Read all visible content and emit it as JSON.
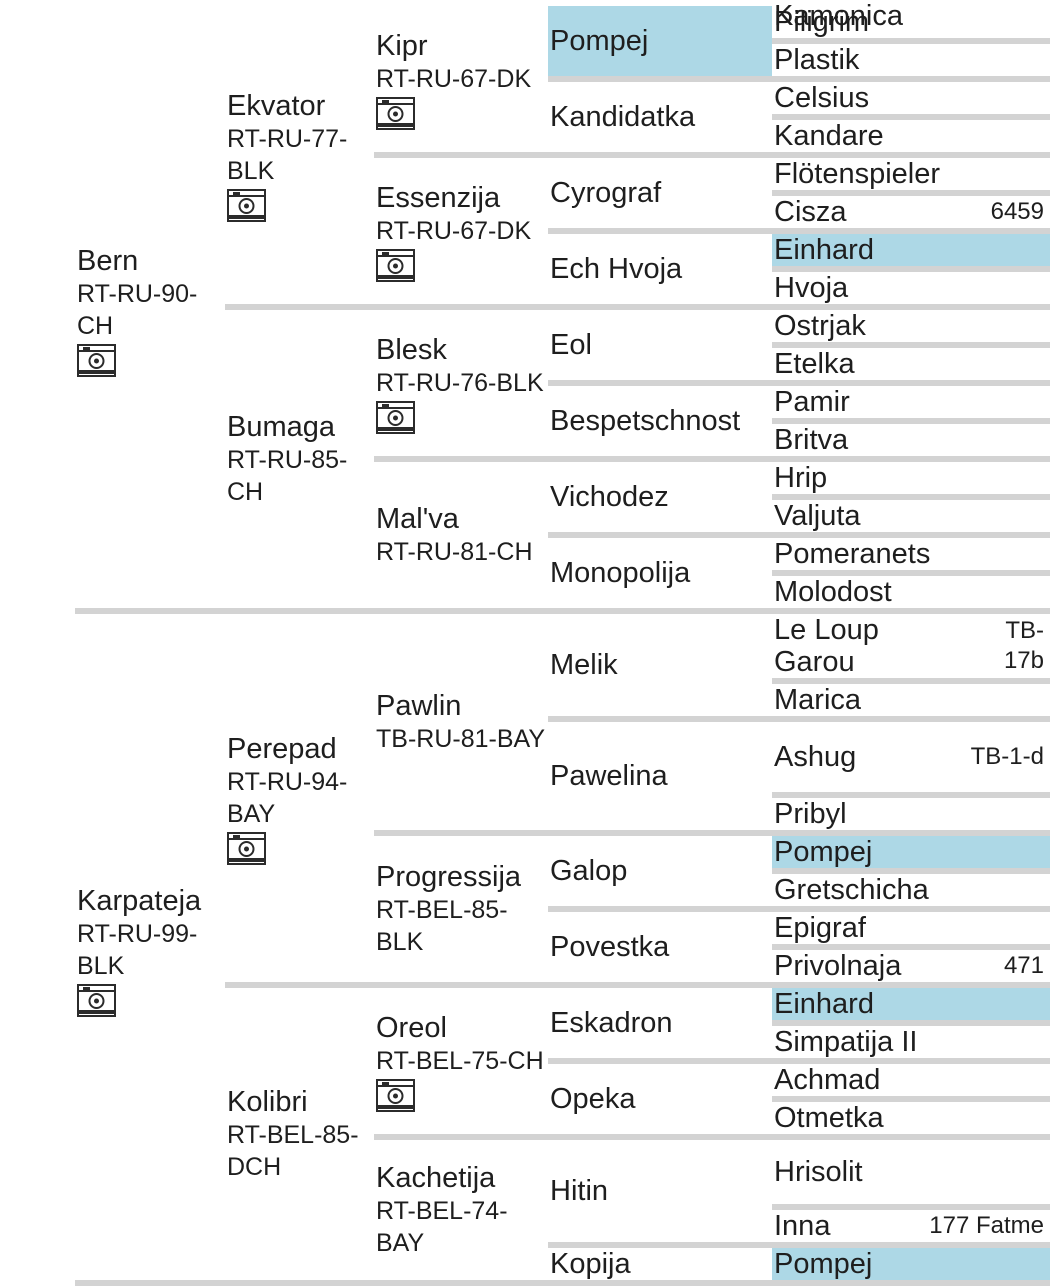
{
  "colors": {
    "highlight": "#add8e6",
    "separator": "#d3d3d3",
    "text": "#1e1e1e"
  },
  "icons": {
    "photo": "camera-icon"
  },
  "pedigree": {
    "name": "Bern",
    "reg": "RT-RU-90-CH",
    "photo": true,
    "sire": {
      "name": "Ekvator",
      "reg": "RT-RU-77-BLK",
      "photo": true,
      "sire": {
        "name": "Kipr",
        "reg": "RT-RU-67-DK",
        "photo": true,
        "sire": {
          "name": "Pompej",
          "highlight": true,
          "sire": {
            "name": "Piligrim"
          },
          "dam": {
            "name": "Plastik"
          }
        },
        "dam": {
          "name": "Kandidatka",
          "sire": {
            "name": "Celsius"
          },
          "dam": {
            "name": "Kandare"
          }
        }
      },
      "dam": {
        "name": "Essenzija",
        "reg": "RT-RU-67-DK",
        "photo": true,
        "sire": {
          "name": "Cyrograf",
          "sire": {
            "name": "Flötenspieler"
          },
          "dam": {
            "name": "Cisza",
            "extra": "6459"
          }
        },
        "dam": {
          "name": "Ech Hvoja",
          "sire": {
            "name": "Einhard",
            "highlight": true
          },
          "dam": {
            "name": "Hvoja"
          }
        }
      }
    },
    "dam": {
      "name": "Bumaga",
      "reg": "RT-RU-85-CH",
      "sire": {
        "name": "Blesk",
        "reg": "RT-RU-76-BLK",
        "photo": true,
        "sire": {
          "name": "Eol",
          "sire": {
            "name": "Ostrjak"
          },
          "dam": {
            "name": "Etelka"
          }
        },
        "dam": {
          "name": "Bespetschnost",
          "sire": {
            "name": "Pamir"
          },
          "dam": {
            "name": "Britva"
          }
        }
      },
      "dam": {
        "name": "Mal'va",
        "reg": "RT-RU-81-CH",
        "sire": {
          "name": "Vichodez",
          "sire": {
            "name": "Hrip"
          },
          "dam": {
            "name": "Valjuta"
          }
        },
        "dam": {
          "name": "Monopolija",
          "sire": {
            "name": "Pomeranets"
          },
          "dam": {
            "name": "Molodost"
          }
        }
      }
    }
  },
  "pedigree2": {
    "name": "Karpateja",
    "reg": "RT-RU-99-BLK",
    "photo": true,
    "sire": {
      "name": "Perepad",
      "reg": "RT-RU-94-BAY",
      "photo": true,
      "sire": {
        "name": "Pawlin",
        "reg": "TB-RU-81-BAY",
        "sire": {
          "name": "Melik",
          "sire": {
            "name": "Le Loup Garou",
            "extra": "TB-17b"
          },
          "dam": {
            "name": "Marica"
          }
        },
        "dam": {
          "name": "Pawelina",
          "sire": {
            "name": "Ashug",
            "extra": "TB-1-d"
          },
          "dam": {
            "name": "Pribyl"
          }
        }
      },
      "dam": {
        "name": "Progressija",
        "reg": "RT-BEL-85-BLK",
        "sire": {
          "name": "Galop",
          "sire": {
            "name": "Pompej",
            "highlight": true
          },
          "dam": {
            "name": "Gretschicha"
          }
        },
        "dam": {
          "name": "Povestka",
          "sire": {
            "name": "Epigraf"
          },
          "dam": {
            "name": "Privolnaja",
            "extra": "471"
          }
        }
      }
    },
    "dam": {
      "name": "Kolibri",
      "reg": "RT-BEL-85-DCH",
      "sire": {
        "name": "Oreol",
        "reg": "RT-BEL-75-CH",
        "photo": true,
        "sire": {
          "name": "Eskadron",
          "sire": {
            "name": "Einhard",
            "highlight": true
          },
          "dam": {
            "name": "Simpatija II"
          }
        },
        "dam": {
          "name": "Opeka",
          "sire": {
            "name": "Achmad"
          },
          "dam": {
            "name": "Otmetka"
          }
        }
      },
      "dam": {
        "name": "Kachetija",
        "reg": "RT-BEL-74-BAY",
        "sire": {
          "name": "Hitin",
          "sire": {
            "name": "Hrisolit"
          },
          "dam": {
            "name": "Inna",
            "extra": "177 Fatme"
          }
        },
        "dam": {
          "name": "Kopija",
          "sire": {
            "name": "Pompej",
            "highlight": true
          },
          "dam": {
            "name": "Kamonica"
          }
        }
      }
    }
  }
}
